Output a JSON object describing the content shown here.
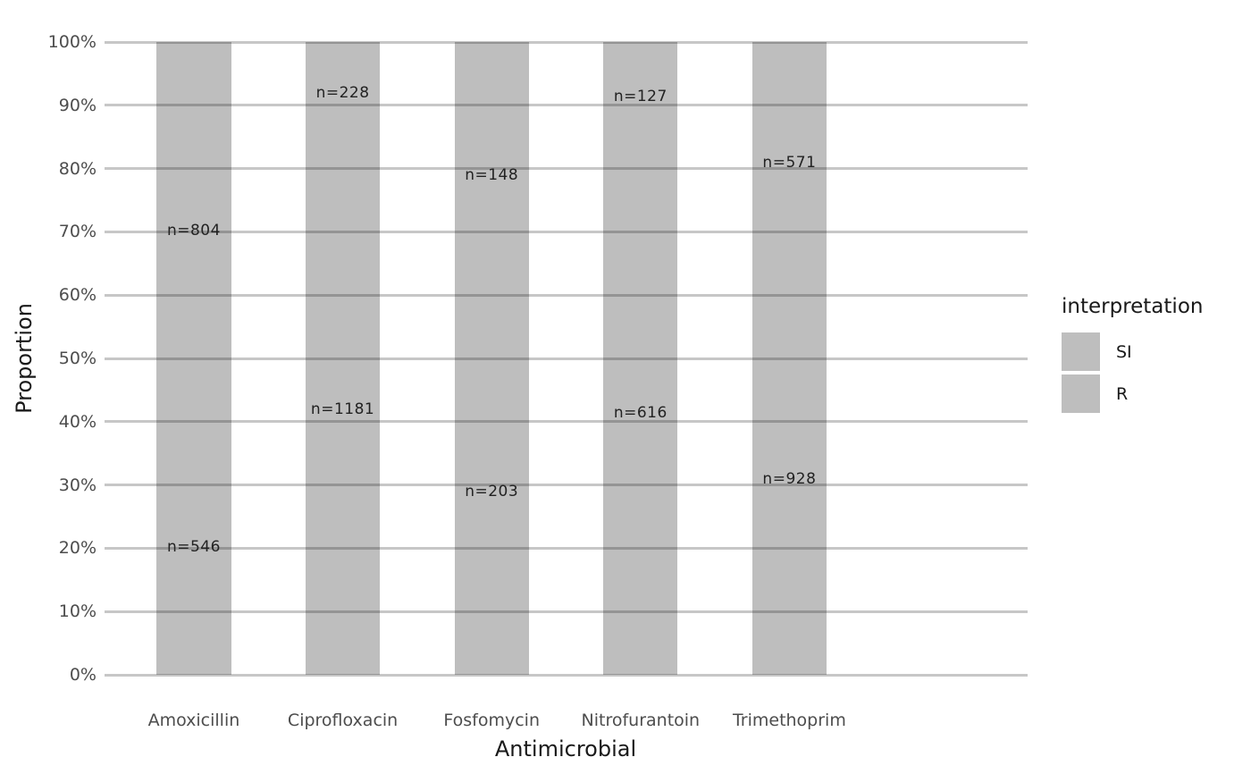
{
  "chart_data": {
    "type": "bar",
    "subtype": "stacked-proportion-100pct",
    "title": "",
    "xlabel": "Antimicrobial",
    "ylabel": "Proportion",
    "categories": [
      "Amoxicillin",
      "Ciprofloxacin",
      "Fosfomycin",
      "Nitrofurantoin",
      "Trimethoprim"
    ],
    "series": [
      {
        "name": "SI",
        "stack_position": "top",
        "values": [
          804,
          228,
          148,
          127,
          571
        ],
        "fill": "#bebebe"
      },
      {
        "name": "R",
        "stack_position": "bottom",
        "values": [
          546,
          1181,
          203,
          616,
          928
        ],
        "fill": "#bebebe"
      }
    ],
    "bar_label_prefix": "n=",
    "bar_labels": {
      "SI": [
        "n=804",
        "n=228",
        "n=148",
        "n=127",
        "n=571"
      ],
      "R": [
        "n=546",
        "n=1181",
        "n=203",
        "n=616",
        "n=928"
      ]
    },
    "y_ticks": [
      "0%",
      "10%",
      "20%",
      "30%",
      "40%",
      "50%",
      "60%",
      "70%",
      "80%",
      "90%",
      "100%"
    ],
    "ylim": [
      0,
      1
    ],
    "grid": "horizontal-major",
    "legend": {
      "title": "interpretation",
      "entries": [
        "SI",
        "R"
      ],
      "position": "right"
    },
    "colors": {
      "bar_fill": "#bebebe",
      "gridline_over_white": "#c6c6c6",
      "gridline_over_bar": "#949494",
      "tick_text": "#4d4d4d",
      "axis_title_text": "#1a1a1a",
      "bar_label_text": "#222222",
      "background": "#ffffff"
    }
  }
}
